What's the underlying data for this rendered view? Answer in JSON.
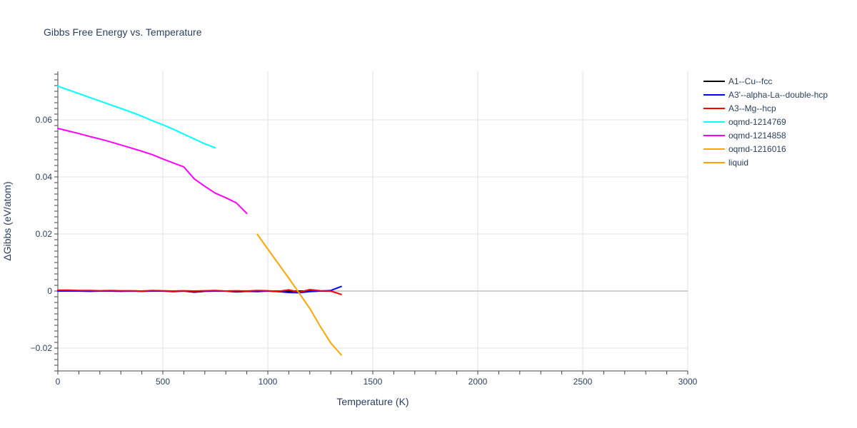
{
  "chart_data": {
    "type": "line",
    "title": "Gibbs Free Energy vs. Temperature",
    "xlabel": "Temperature (K)",
    "ylabel": "ΔGibbs (eV/atom)",
    "xlim": [
      0,
      3000
    ],
    "ylim": [
      -0.028,
      0.077
    ],
    "xticks": [
      0,
      500,
      1000,
      1500,
      2000,
      2500,
      3000
    ],
    "xtick_labels": [
      "0",
      "500",
      "1000",
      "1500",
      "2000",
      "2500",
      "3000"
    ],
    "yticks": [
      -0.02,
      0,
      0.02,
      0.04,
      0.06
    ],
    "ytick_labels": [
      "−0.02",
      "0",
      "0.02",
      "0.04",
      "0.06"
    ],
    "grid": true,
    "legend_position": "right",
    "series": [
      {
        "name": "A1--Cu--fcc",
        "color": "#000000",
        "x": [
          0,
          50,
          100,
          150,
          200,
          250,
          300,
          350,
          400,
          450,
          500,
          550,
          600,
          650,
          700,
          750,
          800,
          850,
          900,
          950,
          1000,
          1050,
          1100,
          1150,
          1200,
          1250,
          1300
        ],
        "y": [
          0,
          0,
          0,
          0,
          0,
          0,
          0,
          0,
          0,
          0,
          0,
          0,
          0,
          0,
          0,
          0,
          0,
          0,
          0,
          0,
          0,
          0,
          0,
          0,
          0,
          0,
          0
        ]
      },
      {
        "name": "A3'--alpha-La--double-hcp",
        "color": "#0000ff",
        "x": [
          0,
          50,
          100,
          150,
          200,
          250,
          300,
          350,
          400,
          450,
          500,
          550,
          600,
          650,
          700,
          750,
          800,
          850,
          900,
          950,
          1000,
          1050,
          1100,
          1150,
          1200,
          1250,
          1300,
          1350
        ],
        "y": [
          0,
          0,
          0,
          -0.0001,
          0,
          0,
          -0.0001,
          0,
          -0.0001,
          0,
          0,
          -0.0002,
          0,
          -0.0004,
          -0.0001,
          0,
          0,
          -0.0003,
          -0.0001,
          -0.0002,
          0,
          -0.0002,
          -0.0005,
          -0.0006,
          -0.0002,
          0,
          0.0002,
          0.0016
        ]
      },
      {
        "name": "A3--Mg--hcp",
        "color": "#ff0000",
        "x": [
          0,
          50,
          100,
          150,
          200,
          250,
          300,
          350,
          400,
          450,
          500,
          550,
          600,
          650,
          700,
          750,
          800,
          850,
          900,
          950,
          1000,
          1050,
          1100,
          1150,
          1200,
          1250,
          1300,
          1350
        ],
        "y": [
          0.0003,
          0.0003,
          0.0002,
          0.0002,
          0.0001,
          0.0002,
          0.0001,
          0.0001,
          0,
          0.0002,
          0.0001,
          0,
          0.0001,
          0,
          0.0001,
          0.0002,
          0,
          0.0001,
          0,
          0.0002,
          0.0001,
          -0.0001,
          0.0004,
          -0.0004,
          0.0005,
          0.0001,
          0,
          -0.0012
        ]
      },
      {
        "name": "oqmd-1214769",
        "color": "#00ffff",
        "x": [
          0,
          50,
          100,
          150,
          200,
          250,
          300,
          350,
          400,
          450,
          500,
          550,
          600,
          650,
          700,
          750
        ],
        "y": [
          0.0718,
          0.0705,
          0.0692,
          0.0679,
          0.0666,
          0.0653,
          0.064,
          0.0627,
          0.0613,
          0.0597,
          0.0583,
          0.0567,
          0.055,
          0.0533,
          0.0516,
          0.0502
        ]
      },
      {
        "name": "oqmd-1214858",
        "color": "#ff00ff",
        "x": [
          0,
          50,
          100,
          150,
          200,
          250,
          300,
          350,
          400,
          450,
          500,
          550,
          600,
          650,
          700,
          750,
          800,
          850,
          900
        ],
        "y": [
          0.057,
          0.0561,
          0.0552,
          0.0542,
          0.0533,
          0.0523,
          0.0512,
          0.0501,
          0.049,
          0.0478,
          0.0463,
          0.0449,
          0.0435,
          0.0393,
          0.0367,
          0.0343,
          0.0327,
          0.0309,
          0.0272
        ]
      },
      {
        "name": "oqmd-1216016",
        "color": "#ffa500",
        "x": [],
        "y": []
      },
      {
        "name": "liquid",
        "color": "#ffa500",
        "x": [
          950,
          1000,
          1050,
          1100,
          1150,
          1200,
          1250,
          1300,
          1350
        ],
        "y": [
          0.0199,
          0.0147,
          0.0096,
          0.0045,
          -0.0008,
          -0.0061,
          -0.0124,
          -0.0182,
          -0.0224
        ]
      }
    ]
  }
}
